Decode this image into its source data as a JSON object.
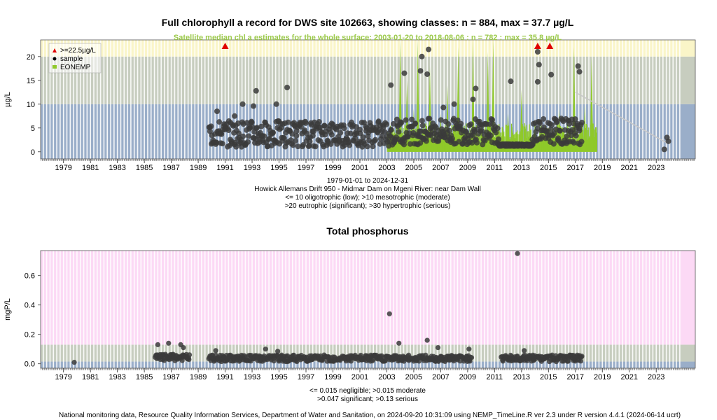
{
  "chart_data": [
    {
      "type": "scatter",
      "title": "Full chlorophyll a record for DWS site 102663, showing classes: n = 884, max = 37.7 µg/L",
      "subtitle": "Satellite median chl a estimates for the whole surface: 2003-01-20 to 2018-08-06 : n = 782 : max = 35.8 µg/L",
      "ylabel": "µg/L",
      "xlim": [
        1977.3,
        2025.9
      ],
      "ylim": [
        -1.5,
        23.5
      ],
      "yticks": [
        0,
        5,
        10,
        15,
        20
      ],
      "xticks": [
        1979,
        1981,
        1983,
        1985,
        1987,
        1989,
        1991,
        1993,
        1995,
        1997,
        1999,
        2001,
        2003,
        2005,
        2007,
        2009,
        2011,
        2013,
        2015,
        2017,
        2019,
        2021,
        2023
      ],
      "bands": [
        {
          "from": -1.5,
          "to": 10,
          "color": "#9aaec9"
        },
        {
          "from": 10,
          "to": 20,
          "color": "#c7cdbf"
        },
        {
          "from": 20,
          "to": 23.5,
          "color": "#faf5c8"
        }
      ],
      "legend": {
        "placement": "top-left",
        "entries": [
          ">=22.5µg/L",
          "sample",
          "EONEMP"
        ]
      },
      "exceedance_markers_x": [
        1991.0,
        2014.2,
        2015.1
      ],
      "highlight_points": [
        {
          "x": 1990.4,
          "y": 8.5
        },
        {
          "x": 1991.7,
          "y": 7.5
        },
        {
          "x": 1992.3,
          "y": 10.0
        },
        {
          "x": 1993.3,
          "y": 12.8
        },
        {
          "x": 1993.1,
          "y": 9.6
        },
        {
          "x": 1994.8,
          "y": 10.0
        },
        {
          "x": 1995.6,
          "y": 13.5
        },
        {
          "x": 2003.3,
          "y": 14.0
        },
        {
          "x": 2004.3,
          "y": 16.5
        },
        {
          "x": 2005.5,
          "y": 17.0
        },
        {
          "x": 2005.6,
          "y": 20.0
        },
        {
          "x": 2006.1,
          "y": 21.5
        },
        {
          "x": 2006.0,
          "y": 16.3
        },
        {
          "x": 2007.2,
          "y": 9.3
        },
        {
          "x": 2008.0,
          "y": 10.0
        },
        {
          "x": 2009.6,
          "y": 13.3
        },
        {
          "x": 2009.4,
          "y": 11.0
        },
        {
          "x": 2012.2,
          "y": 14.8
        },
        {
          "x": 2014.2,
          "y": 21.0
        },
        {
          "x": 2014.3,
          "y": 18.3
        },
        {
          "x": 2014.2,
          "y": 14.7
        },
        {
          "x": 2015.2,
          "y": 16.2
        },
        {
          "x": 2016.5,
          "y": 6.5
        },
        {
          "x": 2017.2,
          "y": 18.0
        },
        {
          "x": 2017.3,
          "y": 16.8
        },
        {
          "x": 2023.6,
          "y": 0.5
        },
        {
          "x": 2023.8,
          "y": 3.0
        },
        {
          "x": 2023.9,
          "y": 2.2
        }
      ],
      "sample_ranges": [
        {
          "x_from": 1989.8,
          "x_to": 2003.6,
          "typical_y": 3.5
        },
        {
          "x_from": 2003.6,
          "x_to": 2011.3,
          "typical_y": 4.0
        },
        {
          "x_from": 2011.3,
          "x_to": 2013.8,
          "typical_y": 1.5
        },
        {
          "x_from": 2013.8,
          "x_to": 2017.5,
          "typical_y": 4.0
        }
      ],
      "satellite_spikes": [
        {
          "x": 2004.0,
          "y": 27
        },
        {
          "x": 2004.5,
          "y": 15
        },
        {
          "x": 2005.0,
          "y": 9
        },
        {
          "x": 2005.3,
          "y": 30
        },
        {
          "x": 2006.2,
          "y": 18
        },
        {
          "x": 2007.0,
          "y": 8
        },
        {
          "x": 2007.5,
          "y": 14
        },
        {
          "x": 2008.3,
          "y": 22
        },
        {
          "x": 2009.4,
          "y": 30
        },
        {
          "x": 2010.3,
          "y": 6
        },
        {
          "x": 2010.5,
          "y": 21
        },
        {
          "x": 2010.9,
          "y": 25
        },
        {
          "x": 2012.0,
          "y": 8
        },
        {
          "x": 2013.0,
          "y": 13
        },
        {
          "x": 2015.8,
          "y": 9
        },
        {
          "x": 2016.9,
          "y": 22
        },
        {
          "x": 2017.7,
          "y": 10
        },
        {
          "x": 2018.2,
          "y": 20
        }
      ],
      "satellite_range": {
        "from": 2003.05,
        "to": 2018.6
      },
      "trend_line": [
        {
          "x": 2017.0,
          "y": 12.5
        },
        {
          "x": 2023.7,
          "y": 2.0
        }
      ],
      "period_label": "1979-01-01 to 2024-12-31",
      "site_label": "Howick Allemans Drift 950 - Midmar Dam on Mgeni River: near Dam Wall",
      "class_notes": [
        "<= 10 oligotrophic (low); >10 mesotrophic (moderate)",
        ">20 eutrophic (significant); >30 hypertrophic (serious)"
      ]
    },
    {
      "type": "scatter",
      "title": "Total phosphorus",
      "ylabel": "mgP/L",
      "xlim": [
        1977.3,
        2025.9
      ],
      "ylim": [
        -0.03,
        0.77
      ],
      "yticks": [
        0.0,
        0.2,
        0.4,
        0.6
      ],
      "ytick_labels": [
        "0.0",
        "0.2",
        "0.4",
        "0.6"
      ],
      "xticks": [
        1979,
        1981,
        1983,
        1985,
        1987,
        1989,
        1991,
        1993,
        1995,
        1997,
        1999,
        2001,
        2003,
        2005,
        2007,
        2009,
        2011,
        2013,
        2015,
        2017,
        2019,
        2021,
        2023
      ],
      "bands": [
        {
          "from": -0.03,
          "to": 0.015,
          "color": "#9aaec9"
        },
        {
          "from": 0.015,
          "to": 0.13,
          "color": "#c7cdbf"
        },
        {
          "from": 0.13,
          "to": 0.77,
          "color": "#fcd9f5"
        }
      ],
      "highlight_points": [
        {
          "x": 1979.8,
          "y": 0.01
        },
        {
          "x": 1986.0,
          "y": 0.13
        },
        {
          "x": 1986.8,
          "y": 0.14
        },
        {
          "x": 1987.7,
          "y": 0.13
        },
        {
          "x": 1987.9,
          "y": 0.11
        },
        {
          "x": 1990.3,
          "y": 0.09
        },
        {
          "x": 1994.0,
          "y": 0.1
        },
        {
          "x": 1994.9,
          "y": 0.085
        },
        {
          "x": 2003.2,
          "y": 0.34
        },
        {
          "x": 2003.9,
          "y": 0.14
        },
        {
          "x": 2006.0,
          "y": 0.16
        },
        {
          "x": 2006.8,
          "y": 0.11
        },
        {
          "x": 2009.1,
          "y": 0.1
        },
        {
          "x": 2012.7,
          "y": 0.75
        },
        {
          "x": 2013.2,
          "y": 0.09
        }
      ],
      "sample_ranges": [
        {
          "x_from": 1985.8,
          "x_to": 1988.4,
          "typical_y": 0.04
        },
        {
          "x_from": 1989.8,
          "x_to": 2005.8,
          "typical_y": 0.035
        },
        {
          "x_from": 2005.9,
          "x_to": 2009.3,
          "typical_y": 0.035
        },
        {
          "x_from": 2011.5,
          "x_to": 2017.5,
          "typical_y": 0.035
        }
      ],
      "class_notes": [
        "<= 0.015 negligible; >0.015 moderate",
        ">0.047 significant; >0.13 serious"
      ]
    }
  ],
  "footer": "National monitoring data, Resource Quality Information Services, Department of Water and Sanitation, on 2024-09-20 10:31:09 using NEMP_TimeLine.R ver 2.3 under R version 4.4.1 (2024-06-14 ucrt)",
  "colors": {
    "sample": "#3b3b3b",
    "satellite": "#8fc92a",
    "exceedance": "#e00000",
    "subtitle": "#9bc94a"
  }
}
